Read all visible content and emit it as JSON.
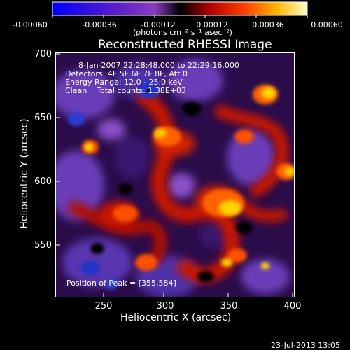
{
  "colorbar": {
    "tick_labels": [
      "-0.00060",
      "-0.00036",
      "-0.00012",
      "0.00012",
      "0.00036",
      "0.00060"
    ],
    "units_label": "(photons cm⁻² s⁻¹ asec⁻²)",
    "range": [
      -0.0006,
      0.0006
    ]
  },
  "plot": {
    "title": "Reconstructed RHESSI Image",
    "xlabel": "Heliocentric X (arcsec)",
    "ylabel": "Heliocentric Y (arcsec)",
    "xticks": [
      "250",
      "300",
      "350",
      "400"
    ],
    "yticks": [
      "700",
      "650",
      "600",
      "550"
    ],
    "xlim": [
      210,
      400
    ],
    "ylim": [
      505,
      703
    ]
  },
  "annotations": {
    "time_range": "8-Jan-2007 22:28:48.000 to 22:29:16.000",
    "detectors": "Detectors: 4F 5F 6F 7F 8F, Att 0",
    "energy_range": "Energy Range: 12.0 - 25.0 keV",
    "clean_counts": "Clean    Total counts: 1.38E+03",
    "peak_position": "Position of Peak = [355,584]"
  },
  "footer": {
    "date": "23-Jul-2013 13:05"
  }
}
